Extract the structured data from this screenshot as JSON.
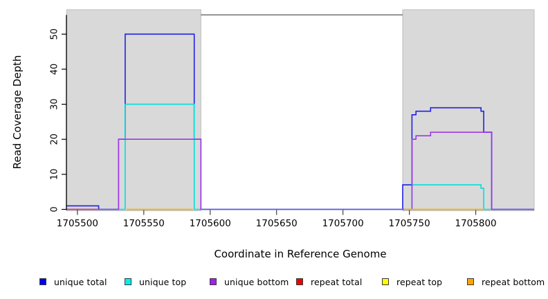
{
  "chart_data": {
    "type": "line",
    "subtype": "step-coverage",
    "title": "",
    "xlabel": "Coordinate in Reference Genome",
    "ylabel": "Read Coverage Depth",
    "xlim": [
      1705492,
      1705844
    ],
    "ylim": [
      0,
      55.5
    ],
    "x_ticks": [
      1705500,
      1705550,
      1705600,
      1705650,
      1705700,
      1705750,
      1705800
    ],
    "y_ticks": [
      0,
      10,
      20,
      30,
      40,
      50
    ],
    "grid": false,
    "legend_position": "bottom",
    "shaded_regions": [
      {
        "name": "covered-region-left",
        "x0": 1705492,
        "x1": 1705593,
        "color": "#d9d9d9",
        "border": "#bdbdbd"
      },
      {
        "name": "covered-region-right",
        "x0": 1705745,
        "x1": 1705844,
        "color": "#d9d9d9",
        "border": "#bdbdbd"
      }
    ],
    "frame_color": "#6e6e6e",
    "axis_color": "#000000",
    "series": [
      {
        "name": "unique total",
        "legend_color": "#0000ee",
        "line_color": "#1f1fe8",
        "runs": [
          [
            1705492,
            1705516,
            1
          ],
          [
            1705516,
            1705531,
            0
          ],
          [
            1705531,
            1705536,
            20
          ],
          [
            1705536,
            1705588,
            50
          ],
          [
            1705588,
            1705593,
            20
          ],
          [
            1705593,
            1705745,
            0
          ],
          [
            1705745,
            1705752,
            7
          ],
          [
            1705752,
            1705755,
            27
          ],
          [
            1705755,
            1705766,
            28
          ],
          [
            1705766,
            1705804,
            29
          ],
          [
            1705804,
            1705806,
            28
          ],
          [
            1705806,
            1705812,
            22
          ],
          [
            1705812,
            1705844,
            0
          ]
        ]
      },
      {
        "name": "unique top",
        "legend_color": "#00eeee",
        "line_color": "#00dede",
        "runs": [
          [
            1705492,
            1705536,
            0
          ],
          [
            1705536,
            1705588,
            30
          ],
          [
            1705588,
            1705752,
            0
          ],
          [
            1705752,
            1705804,
            7
          ],
          [
            1705804,
            1705806,
            6
          ],
          [
            1705806,
            1705844,
            0
          ]
        ]
      },
      {
        "name": "unique bottom",
        "legend_color": "#a020f0",
        "line_color": "#a035e8",
        "runs": [
          [
            1705492,
            1705531,
            0
          ],
          [
            1705531,
            1705593,
            20
          ],
          [
            1705593,
            1705752,
            0
          ],
          [
            1705752,
            1705755,
            20
          ],
          [
            1705755,
            1705766,
            21
          ],
          [
            1705766,
            1705812,
            22
          ],
          [
            1705812,
            1705844,
            0
          ]
        ]
      },
      {
        "name": "repeat total",
        "legend_color": "#ee0000",
        "line_color": "#e8304e",
        "runs": [
          [
            1705492,
            1705516,
            0
          ]
        ]
      },
      {
        "name": "repeat top",
        "legend_color": "#ffff00",
        "line_color": "#f0f000",
        "runs": [
          [
            1705537,
            1705587,
            0
          ],
          [
            1705746,
            1705806,
            0
          ]
        ]
      },
      {
        "name": "repeat bottom",
        "legend_color": "#ffa500",
        "line_color": "#ff9e1b",
        "runs": [
          [
            1705537,
            1705587,
            0
          ],
          [
            1705746,
            1705806,
            0
          ]
        ]
      }
    ]
  }
}
